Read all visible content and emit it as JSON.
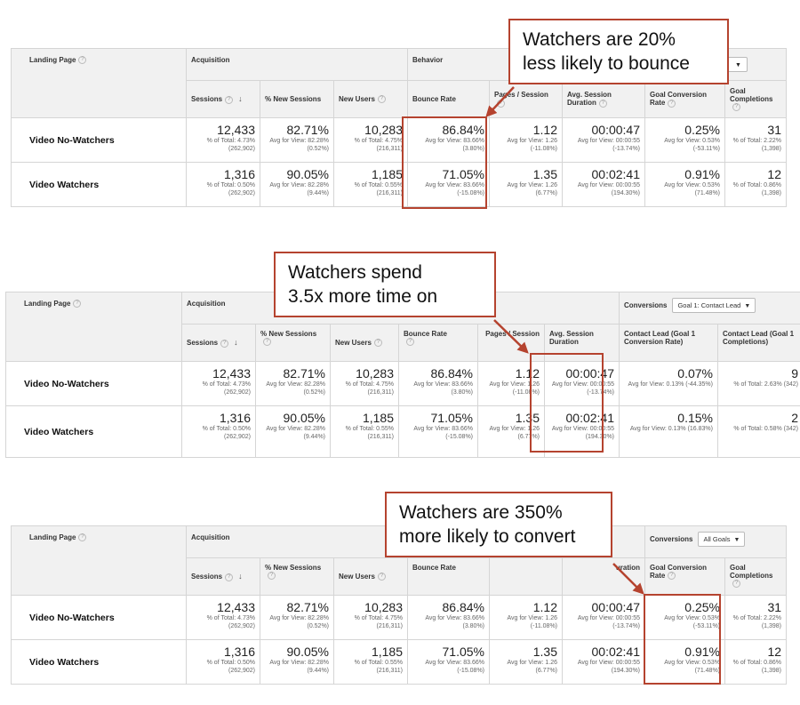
{
  "panels": [
    {
      "landing_page": "Landing Page",
      "group1": "Acquisition",
      "group2": "Behavior",
      "conversions_label": "",
      "conversions_select": "",
      "headers": [
        "Sessions",
        "% New Sessions",
        "New Users",
        "Bounce Rate",
        "Pages / Session",
        "Avg. Session Duration",
        "Goal Conversion Rate",
        "Goal Completions"
      ],
      "rows": [
        {
          "name": "Video No-Watchers",
          "cells": [
            {
              "v": "12,433",
              "s": "% of Total: 4.73% (262,902)"
            },
            {
              "v": "82.71%",
              "s": "Avg for View: 82.28% (0.52%)"
            },
            {
              "v": "10,283",
              "s": "% of Total: 4.75% (216,311)"
            },
            {
              "v": "86.84%",
              "s": "Avg for View: 83.66% (3.80%)"
            },
            {
              "v": "1.12",
              "s": "Avg for View: 1.26 (-11.08%)"
            },
            {
              "v": "00:00:47",
              "s": "Avg for View: 00:00:55 (-13.74%)"
            },
            {
              "v": "0.25%",
              "s": "Avg for View: 0.53% (-53.11%)"
            },
            {
              "v": "31",
              "s": "% of Total: 2.22% (1,398)"
            }
          ]
        },
        {
          "name": "Video Watchers",
          "cells": [
            {
              "v": "1,316",
              "s": "% of Total: 0.50% (262,902)"
            },
            {
              "v": "90.05%",
              "s": "Avg for View: 82.28% (9.44%)"
            },
            {
              "v": "1,185",
              "s": "% of Total: 0.55% (216,311)"
            },
            {
              "v": "71.05%",
              "s": "Avg for View: 83.66% (-15.08%)"
            },
            {
              "v": "1.35",
              "s": "Avg for View: 1.26 (6.77%)"
            },
            {
              "v": "00:02:41",
              "s": "Avg for View: 00:00:55 (194.30%)"
            },
            {
              "v": "0.91%",
              "s": "Avg for View: 0.53% (71.48%)"
            },
            {
              "v": "12",
              "s": "% of Total: 0.86% (1,398)"
            }
          ]
        }
      ],
      "callout": [
        "Watchers are 20%",
        "less likely to bounce"
      ]
    },
    {
      "landing_page": "Landing Page",
      "group1": "Acquisition",
      "group2": "",
      "conversions_label": "Conversions",
      "conversions_select": "Goal 1: Contact Lead",
      "headers": [
        "Sessions",
        "% New Sessions",
        "New Users",
        "Bounce Rate",
        "Pages / Session",
        "Avg. Session Duration",
        "Contact Lead (Goal 1 Conversion Rate)",
        "Contact Lead (Goal 1 Completions)"
      ],
      "rows": [
        {
          "name": "Video No-Watchers",
          "cells": [
            {
              "v": "12,433",
              "s": "% of Total: 4.73% (262,902)"
            },
            {
              "v": "82.71%",
              "s": "Avg for View: 82.28% (0.52%)"
            },
            {
              "v": "10,283",
              "s": "% of Total: 4.75% (216,311)"
            },
            {
              "v": "86.84%",
              "s": "Avg for View: 83.66% (3.80%)"
            },
            {
              "v": "1.12",
              "s": "Avg for View: 1.26 (-11.08%)"
            },
            {
              "v": "00:00:47",
              "s": "Avg for View: 00:00:55 (-13.74%)"
            },
            {
              "v": "0.07%",
              "s": "Avg for View: 0.13% (-44.35%)"
            },
            {
              "v": "9",
              "s": "% of Total: 2.63% (342)"
            }
          ]
        },
        {
          "name": "Video Watchers",
          "cells": [
            {
              "v": "1,316",
              "s": "% of Total: 0.50% (262,902)"
            },
            {
              "v": "90.05%",
              "s": "Avg for View: 82.28% (9.44%)"
            },
            {
              "v": "1,185",
              "s": "% of Total: 0.55% (216,311)"
            },
            {
              "v": "71.05%",
              "s": "Avg for View: 83.66% (-15.08%)"
            },
            {
              "v": "1.35",
              "s": "Avg for View: 1.26 (6.77%)"
            },
            {
              "v": "00:02:41",
              "s": "Avg for View: 00:00:55 (194.30%)"
            },
            {
              "v": "0.15%",
              "s": "Avg for View: 0.13% (16.83%)"
            },
            {
              "v": "2",
              "s": "% of Total: 0.58% (342)"
            }
          ]
        }
      ],
      "callout": [
        "Watchers spend",
        "3.5x more time on"
      ]
    },
    {
      "landing_page": "Landing Page",
      "group1": "Acquisition",
      "group2": "",
      "conversions_label": "Conversions",
      "conversions_select": "All Goals",
      "headers": [
        "Sessions",
        "% New Sessions",
        "New Users",
        "Bounce Rate",
        "",
        "uration",
        "Goal Conversion Rate",
        "Goal Completions"
      ],
      "rows": [
        {
          "name": "Video No-Watchers",
          "cells": [
            {
              "v": "12,433",
              "s": "% of Total: 4.73% (262,902)"
            },
            {
              "v": "82.71%",
              "s": "Avg for View: 82.28% (0.52%)"
            },
            {
              "v": "10,283",
              "s": "% of Total: 4.75% (216,311)"
            },
            {
              "v": "86.84%",
              "s": "Avg for View: 83.66% (3.80%)"
            },
            {
              "v": "1.12",
              "s": "Avg for View: 1.26 (-11.08%)"
            },
            {
              "v": "00:00:47",
              "s": "Avg for View: 00:00:55 (-13.74%)"
            },
            {
              "v": "0.25%",
              "s": "Avg for View: 0.53% (-53.11%)"
            },
            {
              "v": "31",
              "s": "% of Total: 2.22% (1,398)"
            }
          ]
        },
        {
          "name": "Video Watchers",
          "cells": [
            {
              "v": "1,316",
              "s": "% of Total: 0.50% (262,902)"
            },
            {
              "v": "90.05%",
              "s": "Avg for View: 82.28% (9.44%)"
            },
            {
              "v": "1,185",
              "s": "% of Total: 0.55% (216,311)"
            },
            {
              "v": "71.05%",
              "s": "Avg for View: 83.66% (-15.08%)"
            },
            {
              "v": "1.35",
              "s": "Avg for View: 1.26 (6.77%)"
            },
            {
              "v": "00:02:41",
              "s": "Avg for View: 00:00:55 (194.30%)"
            },
            {
              "v": "0.91%",
              "s": "Avg for View: 0.53% (71.48%)"
            },
            {
              "v": "12",
              "s": "% of Total: 0.86% (1,398)"
            }
          ]
        }
      ],
      "callout": [
        "Watchers are 350%",
        "more likely to convert"
      ]
    }
  ],
  "colors": {
    "highlight": "#b5432f",
    "header_bg": "#f1f1f1",
    "border": "#d5d5d5"
  }
}
